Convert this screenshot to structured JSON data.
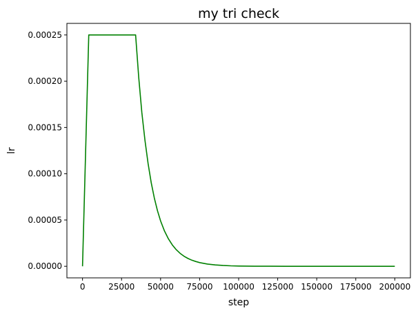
{
  "chart_data": {
    "type": "line",
    "title": "my tri check",
    "xlabel": "step",
    "ylabel": "lr",
    "xlim": [
      -10000,
      210000
    ],
    "ylim": [
      -1.25e-05,
      0.0002625
    ],
    "xticks": [
      0,
      25000,
      50000,
      75000,
      100000,
      125000,
      150000,
      175000,
      200000
    ],
    "xtick_labels": [
      "0",
      "25000",
      "50000",
      "75000",
      "100000",
      "125000",
      "150000",
      "175000",
      "200000"
    ],
    "yticks": [
      0.0,
      5e-05,
      0.0001,
      0.00015,
      0.0002,
      0.00025
    ],
    "ytick_labels": [
      "0.00000",
      "0.00005",
      "0.00010",
      "0.00015",
      "0.00020",
      "0.00025"
    ],
    "grid": false,
    "legend": "none",
    "series": [
      {
        "color": "#008000",
        "x": [
          0,
          4000,
          34000,
          36000,
          38000,
          40000,
          42000,
          44000,
          46000,
          48000,
          50000,
          52500,
          55000,
          57500,
          60000,
          62500,
          65000,
          67500,
          70000,
          72500,
          75000,
          80000,
          85000,
          90000,
          95000,
          100000,
          110000,
          120000,
          130000,
          140000,
          150000,
          160000,
          170000,
          180000,
          190000,
          200000
        ],
        "y": [
          0.0,
          0.00025,
          0.00025,
          0.000204,
          0.000166,
          0.000136,
          0.000111,
          9.03e-05,
          7.37e-05,
          6.01e-05,
          4.9e-05,
          3.81e-05,
          2.97e-05,
          2.31e-05,
          1.8e-05,
          1.4e-05,
          1.09e-05,
          8.5e-06,
          6.6e-06,
          5.2e-06,
          4e-06,
          2.4e-06,
          1.5e-06,
          9e-07,
          5e-07,
          3e-07,
          1e-07,
          5e-08,
          2e-08,
          1e-08,
          0.0,
          0.0,
          0.0,
          0.0,
          0.0,
          0.0
        ]
      }
    ]
  }
}
